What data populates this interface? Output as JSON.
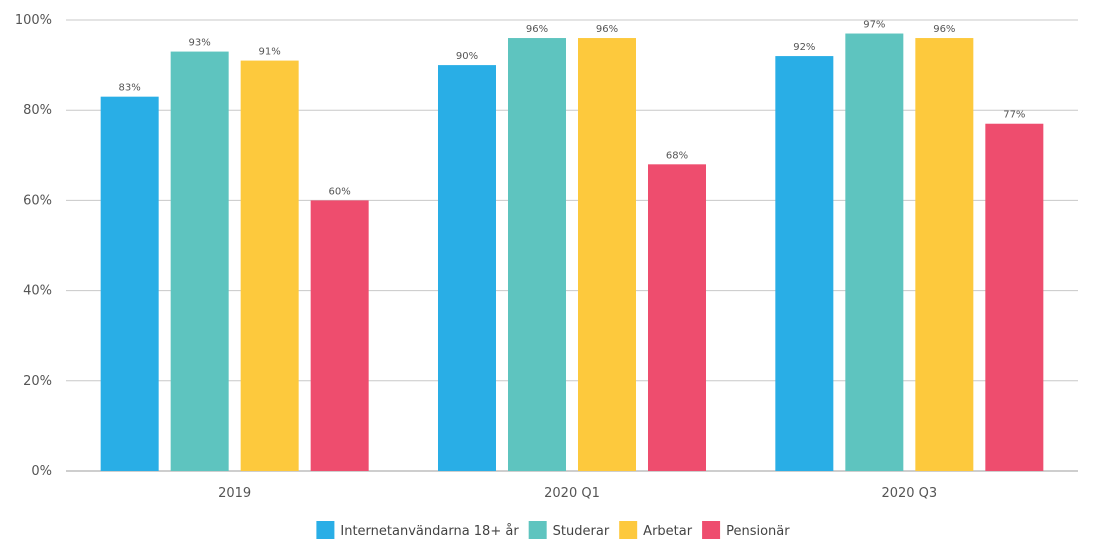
{
  "chart_data": {
    "type": "bar",
    "categories": [
      "2019",
      "2020 Q1",
      "2020 Q3"
    ],
    "series": [
      {
        "name": "Internetanvändarna 18+ år",
        "color": "#29aee6",
        "values": [
          83,
          90,
          92
        ],
        "labels": [
          "83%",
          "90%",
          "92%"
        ]
      },
      {
        "name": "Studerar",
        "color": "#5ec4bf",
        "values": [
          93,
          96,
          97
        ],
        "labels": [
          "93%",
          "96%",
          "97%"
        ]
      },
      {
        "name": "Arbetar",
        "color": "#fdc93d",
        "values": [
          91,
          96,
          96
        ],
        "labels": [
          "91%",
          "96%",
          "96%"
        ]
      },
      {
        "name": "Pensionär",
        "color": "#ee4d6e",
        "values": [
          60,
          68,
          77
        ],
        "labels": [
          "60%",
          "68%",
          "77%"
        ]
      }
    ],
    "yticks": [
      0,
      20,
      40,
      60,
      80,
      100
    ],
    "ytick_labels": [
      "0%",
      "20%",
      "40%",
      "60%",
      "80%",
      "100%"
    ],
    "ylim": [
      0,
      100
    ],
    "grid": true,
    "legend_position": "bottom-center"
  }
}
